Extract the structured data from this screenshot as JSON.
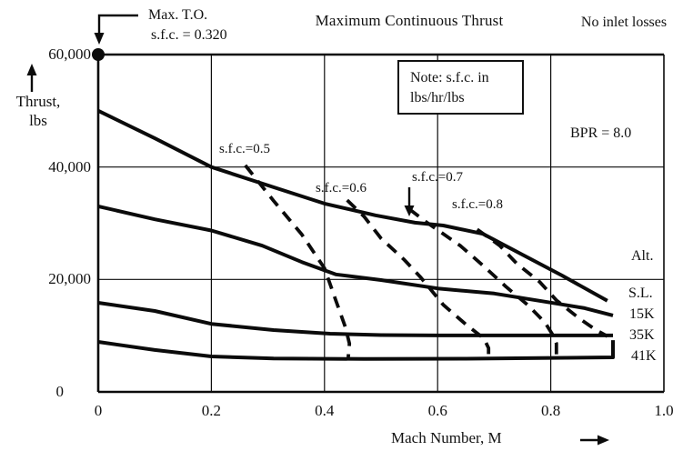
{
  "header": {
    "title": "Maximum Continuous Thrust",
    "condition_note": "No inlet losses"
  },
  "annotations": {
    "max_to_line1": "Max. T.O.",
    "max_to_line2": "s.f.c. = 0.320",
    "note_box_line1": "Note: s.f.c. in",
    "note_box_line2": "lbs/hr/lbs",
    "bpr": "BPR = 8.0",
    "alt_header": "Alt."
  },
  "axes": {
    "y_label_line1": "Thrust,",
    "y_label_line2": "lbs",
    "x_label": "Mach Number, M"
  },
  "curve_labels": {
    "sl": "S.L.",
    "k15": "15K",
    "k35": "35K",
    "k41": "41K"
  },
  "sfc_labels": {
    "s05": "s.f.c.=0.5",
    "s06": "s.f.c.=0.6",
    "s07": "s.f.c.=0.7",
    "s08": "s.f.c.=0.8"
  },
  "chart_data": {
    "type": "line",
    "title": "Maximum Continuous Thrust",
    "subtitle": "No inlet losses",
    "xlabel": "Mach Number, M",
    "ylabel": "Thrust, lbs",
    "note": "Note: s.f.c. in lbs/hr/lbs",
    "bpr": 8.0,
    "xlim": [
      0,
      1.0
    ],
    "ylim": [
      0,
      60000
    ],
    "x_ticks": [
      0,
      0.2,
      0.4,
      0.6,
      0.8,
      1.0
    ],
    "x_tick_labels": [
      "0",
      "0.2",
      "0.4",
      "0.6",
      "0.8",
      "1.0"
    ],
    "y_ticks": [
      0,
      20000,
      40000,
      60000
    ],
    "y_tick_labels": [
      "0",
      "20,000",
      "40,000",
      "60,000"
    ],
    "grid": true,
    "max_takeoff_point": {
      "mach": 0,
      "thrust": 60000,
      "sfc": 0.32
    },
    "series": [
      {
        "name": "S.L.",
        "group": "altitude",
        "style": "solid",
        "points": [
          [
            0,
            50000
          ],
          [
            0.1,
            45100
          ],
          [
            0.2,
            40000
          ],
          [
            0.31,
            36400
          ],
          [
            0.4,
            33500
          ],
          [
            0.49,
            31400
          ],
          [
            0.56,
            30100
          ],
          [
            0.61,
            29600
          ],
          [
            0.68,
            28100
          ],
          [
            0.75,
            24400
          ],
          [
            0.82,
            20700
          ],
          [
            0.9,
            16200
          ]
        ]
      },
      {
        "name": "15K",
        "group": "altitude",
        "style": "solid",
        "points": [
          [
            0,
            33000
          ],
          [
            0.1,
            30700
          ],
          [
            0.2,
            28700
          ],
          [
            0.29,
            26000
          ],
          [
            0.36,
            23100
          ],
          [
            0.42,
            20900
          ],
          [
            0.5,
            19900
          ],
          [
            0.6,
            18400
          ],
          [
            0.7,
            17500
          ],
          [
            0.78,
            16200
          ],
          [
            0.86,
            14900
          ],
          [
            0.91,
            13600
          ]
        ]
      },
      {
        "name": "35K",
        "group": "altitude",
        "style": "solid",
        "points": [
          [
            0,
            15850
          ],
          [
            0.1,
            14400
          ],
          [
            0.2,
            12100
          ],
          [
            0.31,
            11000
          ],
          [
            0.41,
            10350
          ],
          [
            0.5,
            10100
          ],
          [
            0.6,
            10050
          ],
          [
            0.91,
            10050
          ]
        ]
      },
      {
        "name": "41K",
        "group": "altitude",
        "style": "solid",
        "points": [
          [
            0,
            8900
          ],
          [
            0.1,
            7450
          ],
          [
            0.2,
            6300
          ],
          [
            0.31,
            5950
          ],
          [
            0.47,
            5850
          ],
          [
            0.65,
            5900
          ],
          [
            0.91,
            6150
          ],
          [
            0.91,
            9200
          ]
        ]
      },
      {
        "name": "s.f.c.=0.5",
        "group": "sfc",
        "style": "dashed",
        "points": [
          [
            0.26,
            40300
          ],
          [
            0.31,
            34000
          ],
          [
            0.36,
            28000
          ],
          [
            0.4,
            22000
          ],
          [
            0.42,
            16300
          ],
          [
            0.437,
            11500
          ],
          [
            0.444,
            8600
          ],
          [
            0.442,
            6150
          ]
        ]
      },
      {
        "name": "s.f.c.=0.6",
        "group": "sfc",
        "style": "dashed",
        "points": [
          [
            0.44,
            34100
          ],
          [
            0.47,
            31200
          ],
          [
            0.5,
            27300
          ],
          [
            0.54,
            23600
          ],
          [
            0.57,
            20400
          ],
          [
            0.61,
            15500
          ],
          [
            0.65,
            12000
          ],
          [
            0.682,
            9500
          ],
          [
            0.69,
            7800
          ],
          [
            0.69,
            6150
          ]
        ]
      },
      {
        "name": "s.f.c.=0.7",
        "group": "sfc",
        "style": "dashed",
        "points": [
          [
            0.55,
            32500
          ],
          [
            0.58,
            30200
          ],
          [
            0.64,
            26000
          ],
          [
            0.68,
            22500
          ],
          [
            0.72,
            18800
          ],
          [
            0.76,
            15400
          ],
          [
            0.79,
            12300
          ],
          [
            0.803,
            10200
          ],
          [
            0.81,
            8600
          ],
          [
            0.81,
            6150
          ]
        ]
      },
      {
        "name": "s.f.c.=0.8",
        "group": "sfc",
        "style": "dashed",
        "points": [
          [
            0.67,
            28900
          ],
          [
            0.71,
            26000
          ],
          [
            0.74,
            22800
          ],
          [
            0.78,
            19600
          ],
          [
            0.81,
            16300
          ],
          [
            0.85,
            13100
          ],
          [
            0.88,
            11000
          ],
          [
            0.9,
            9900
          ]
        ]
      }
    ]
  }
}
